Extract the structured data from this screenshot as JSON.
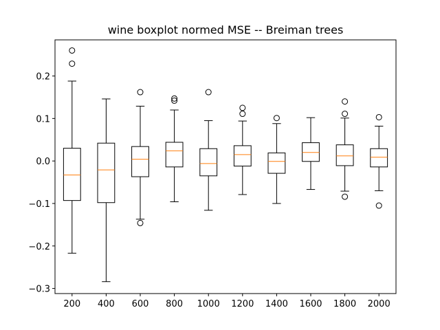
{
  "chart_data": {
    "type": "boxplot",
    "title": "wine boxplot normed MSE -- Breiman trees",
    "xlabel": "",
    "ylabel": "",
    "categories": [
      "200",
      "400",
      "600",
      "800",
      "1000",
      "1200",
      "1400",
      "1600",
      "1800",
      "2000"
    ],
    "ylim": [
      -0.312,
      0.285
    ],
    "yticks": [
      -0.3,
      -0.2,
      -0.1,
      0.0,
      0.1,
      0.2
    ],
    "ytick_labels": [
      "−0.3",
      "−0.2",
      "−0.1",
      "0.0",
      "0.1",
      "0.2"
    ],
    "grid": false,
    "boxes": [
      {
        "whislo": -0.217,
        "q1": -0.093,
        "med": -0.033,
        "q3": 0.03,
        "whishi": 0.188,
        "fliers": [
          0.26,
          0.229
        ]
      },
      {
        "whislo": -0.284,
        "q1": -0.098,
        "med": -0.021,
        "q3": 0.042,
        "whishi": 0.146,
        "fliers": []
      },
      {
        "whislo": -0.137,
        "q1": -0.037,
        "med": 0.004,
        "q3": 0.034,
        "whishi": 0.129,
        "fliers": [
          0.162,
          -0.146
        ]
      },
      {
        "whislo": -0.096,
        "q1": -0.014,
        "med": 0.024,
        "q3": 0.044,
        "whishi": 0.12,
        "fliers": [
          0.147,
          0.142
        ]
      },
      {
        "whislo": -0.116,
        "q1": -0.035,
        "med": -0.006,
        "q3": 0.029,
        "whishi": 0.095,
        "fliers": [
          0.162
        ]
      },
      {
        "whislo": -0.079,
        "q1": -0.012,
        "med": 0.015,
        "q3": 0.036,
        "whishi": 0.094,
        "fliers": [
          0.125,
          0.111
        ]
      },
      {
        "whislo": -0.1,
        "q1": -0.029,
        "med": -0.001,
        "q3": 0.019,
        "whishi": 0.088,
        "fliers": [
          0.101
        ]
      },
      {
        "whislo": -0.067,
        "q1": -0.001,
        "med": 0.02,
        "q3": 0.043,
        "whishi": 0.102,
        "fliers": []
      },
      {
        "whislo": -0.071,
        "q1": -0.011,
        "med": 0.012,
        "q3": 0.038,
        "whishi": 0.101,
        "fliers": [
          0.14,
          0.111,
          -0.084
        ]
      },
      {
        "whislo": -0.07,
        "q1": -0.014,
        "med": 0.009,
        "q3": 0.029,
        "whishi": 0.082,
        "fliers": [
          0.103,
          -0.105
        ]
      }
    ],
    "colors": {
      "box": "#000000",
      "median": "#ff7f0e",
      "flier": "#000000"
    }
  }
}
